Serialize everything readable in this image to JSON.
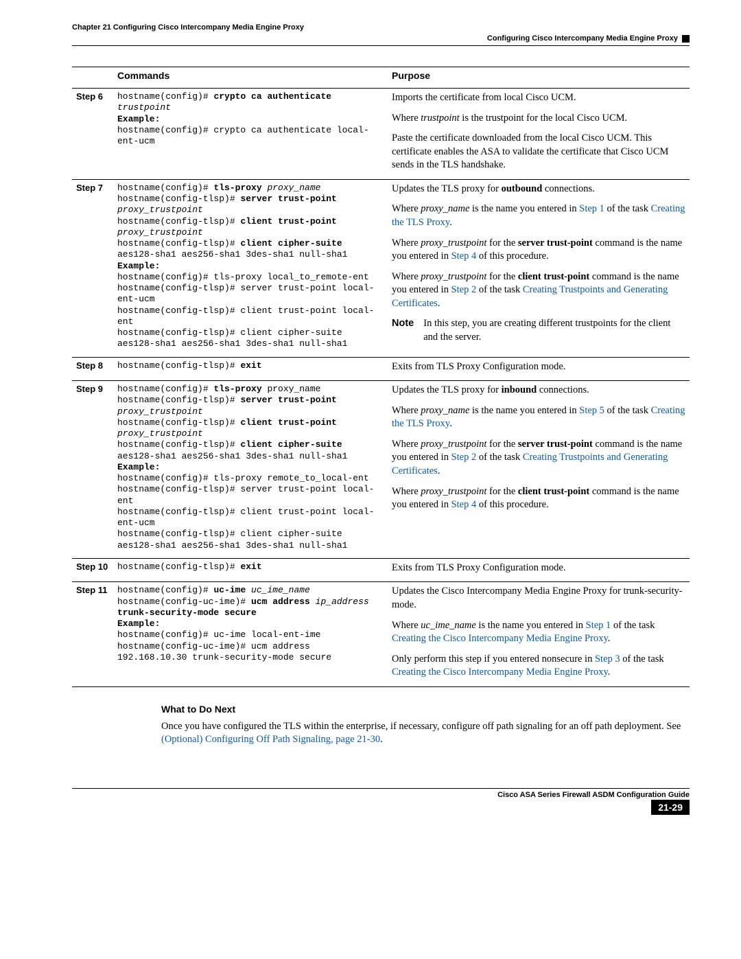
{
  "header": {
    "chapter": "Chapter 21      Configuring Cisco Intercompany Media Engine Proxy",
    "section": "Configuring Cisco Intercompany Media Engine Proxy"
  },
  "table": {
    "head_commands": "Commands",
    "head_purpose": "Purpose",
    "steps": {
      "s6": "Step 6",
      "s7": "Step 7",
      "s8": "Step 8",
      "s9": "Step 9",
      "s10": "Step 10",
      "s11": "Step 11"
    },
    "cmd": {
      "s6_a": "hostname(config)# ",
      "s6_b": "crypto ca authenticate ",
      "s6_c": "trustpoint",
      "s6_ex": "Example:",
      "s6_d": "hostname(config)# crypto ca authenticate local-ent-ucm",
      "s7_a": "hostname(config)# ",
      "s7_b": "tls-proxy ",
      "s7_c": "proxy_name",
      "s7_d": "hostname(config-tlsp)# ",
      "s7_e": "server trust-point ",
      "s7_f": "proxy_trustpoint",
      "s7_g": "hostname(config-tlsp)# ",
      "s7_h": "client trust-point ",
      "s7_i": "proxy_trustpoint",
      "s7_j": "hostname(config-tlsp)# ",
      "s7_k": "client cipher-suite ",
      "s7_l": "aes128-sha1 aes256-sha1 3des-sha1 null-sha1",
      "s7_ex": "Example:",
      "s7_m": "hostname(config)# tls-proxy local_to_remote-ent\nhostname(config-tlsp)# server trust-point local-ent-ucm\nhostname(config-tlsp)# client trust-point local-ent\nhostname(config-tlsp)# client cipher-suite aes128-sha1 aes256-sha1 3des-sha1 null-sha1",
      "s8_a": "hostname(config-tlsp)# ",
      "s8_b": "exit",
      "s9_a": "hostname(config)# ",
      "s9_b": "tls-proxy ",
      "s9_c": "proxy_name",
      "s9_d": "hostname(config-tlsp)# ",
      "s9_e": "server trust-point ",
      "s9_f": "proxy_trustpoint",
      "s9_g": "hostname(config-tlsp)# ",
      "s9_h": "client trust-point ",
      "s9_i": "proxy_trustpoint",
      "s9_j": "hostname(config-tlsp)# ",
      "s9_k": "client cipher-suite ",
      "s9_l": "aes128-sha1 aes256-sha1 3des-sha1 null-sha1",
      "s9_ex": "Example:",
      "s9_m": "hostname(config)# tls-proxy remote_to_local-ent\nhostname(config-tlsp)# server trust-point local-ent\nhostname(config-tlsp)# client trust-point local-ent-ucm\nhostname(config-tlsp)# client cipher-suite aes128-sha1 aes256-sha1 3des-sha1 null-sha1",
      "s10_a": "hostname(config-tlsp)# ",
      "s10_b": "exit",
      "s11_a": "hostname(config)# ",
      "s11_b": "uc-ime ",
      "s11_c": "uc_ime_name",
      "s11_d": "hostname(config-uc-ime)# ",
      "s11_e": "ucm address ",
      "s11_f": "ip_address",
      "s11_g": " trunk-security-mode secure",
      "s11_ex": "Example:",
      "s11_h": "hostname(config)# uc-ime local-ent-ime\nhostname(config-uc-ime)# ucm address 192.168.10.30 trunk-security-mode secure"
    },
    "purpose": {
      "s6_p1": "Imports the certificate from local Cisco UCM.",
      "s6_p2a": "Where ",
      "s6_p2b": "trustpoint",
      "s6_p2c": " is the trustpoint for the local Cisco UCM.",
      "s6_p3": "Paste the certificate downloaded from the local Cisco UCM. This certificate enables the ASA to validate the certificate that Cisco UCM sends in the TLS handshake.",
      "s7_p1a": "Updates the TLS proxy for ",
      "s7_p1b": "outbound",
      "s7_p1c": " connections.",
      "s7_p2a": "Where ",
      "s7_p2b": "proxy_name",
      "s7_p2c": " is the name you entered in ",
      "s7_p2d": "Step 1",
      "s7_p2e": " of the task ",
      "s7_p2f": "Creating the TLS Proxy",
      "s7_p2g": ".",
      "s7_p3a": "Where ",
      "s7_p3b": "proxy_trustpoint",
      "s7_p3c": " for the ",
      "s7_p3d": "server trust-point",
      "s7_p3e": " command is the name you entered in ",
      "s7_p3f": "Step 4",
      "s7_p3g": " of this procedure.",
      "s7_p4a": "Where ",
      "s7_p4b": "proxy_trustpoint",
      "s7_p4c": " for the ",
      "s7_p4d": "client trust-point",
      "s7_p4e": " command is the name you entered in ",
      "s7_p4f": "Step 2",
      "s7_p4g": " of the task ",
      "s7_p4h": "Creating Trustpoints and Generating Certificates",
      "s7_p4i": ".",
      "s7_note_lbl": "Note",
      "s7_note": "In this step, you are creating different trustpoints for the client and the server.",
      "s8_p1": "Exits from TLS Proxy Configuration mode.",
      "s9_p1a": "Updates the TLS proxy for ",
      "s9_p1b": "inbound",
      "s9_p1c": " connections.",
      "s9_p2a": "Where ",
      "s9_p2b": "proxy_name",
      "s9_p2c": " is the name you entered in ",
      "s9_p2d": "Step 5",
      "s9_p2e": " of the task ",
      "s9_p2f": "Creating the TLS Proxy",
      "s9_p2g": ".",
      "s9_p3a": "Where ",
      "s9_p3b": "proxy_trustpoint",
      "s9_p3c": " for the ",
      "s9_p3d": "server trust-point",
      "s9_p3e": " command is the name you entered in ",
      "s9_p3f": "Step 2",
      "s9_p3g": " of the task ",
      "s9_p3h": "Creating Trustpoints and Generating Certificates",
      "s9_p3i": ".",
      "s9_p4a": "Where ",
      "s9_p4b": "proxy_trustpoint",
      "s9_p4c": " for the ",
      "s9_p4d": "client trust-point",
      "s9_p4e": " command is the name you entered in ",
      "s9_p4f": "Step 4",
      "s9_p4g": " of this procedure.",
      "s10_p1": "Exits from TLS Proxy Configuration mode.",
      "s11_p1": "Updates the Cisco Intercompany Media Engine Proxy for trunk-security-mode.",
      "s11_p2a": "Where ",
      "s11_p2b": "uc_ime_name",
      "s11_p2c": " is the name you entered in ",
      "s11_p2d": "Step 1",
      "s11_p2e": " of the task ",
      "s11_p2f": "Creating the Cisco Intercompany Media Engine Proxy",
      "s11_p2g": ".",
      "s11_p3a": "Only perform this step if you entered nonsecure in ",
      "s11_p3b": "Step 3",
      "s11_p3c": " of the task ",
      "s11_p3d": "Creating the Cisco Intercompany Media Engine Proxy",
      "s11_p3e": "."
    }
  },
  "what_next": {
    "title": "What to Do Next",
    "body_a": "Once you have configured the TLS within the enterprise, if necessary, configure off path signaling for an off path deployment. See ",
    "body_b": "(Optional) Configuring Off Path Signaling, page 21-30",
    "body_c": "."
  },
  "footer": {
    "guide": "Cisco ASA Series Firewall ASDM Configuration Guide",
    "page": "21-29"
  },
  "style": {
    "link_color": "#0b5aa6",
    "mono_font": "Courier New",
    "body_font": "Times New Roman",
    "sans_font": "Arial"
  }
}
